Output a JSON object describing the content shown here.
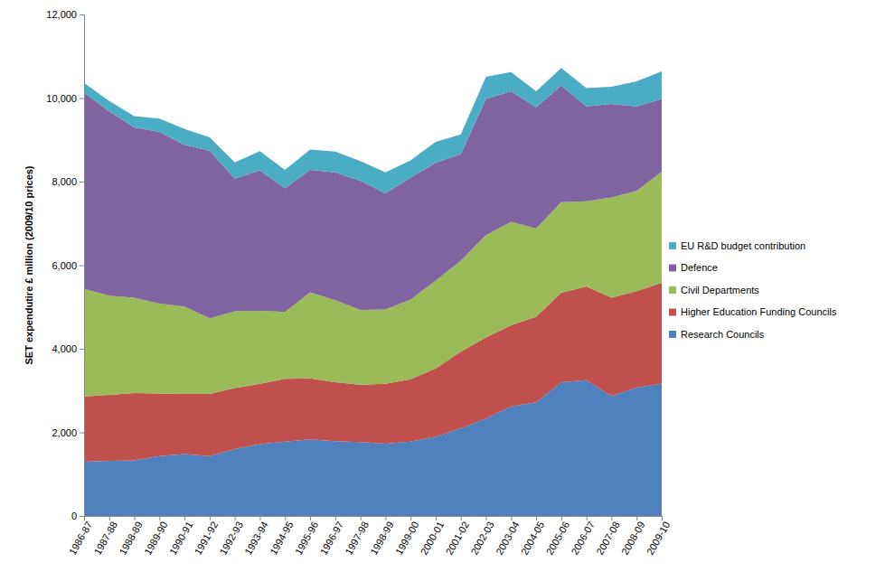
{
  "chart_data": {
    "type": "area",
    "stacked": true,
    "grid": false,
    "legend": "right",
    "y_label": "SET expendutire £ million (2009/10 prices)",
    "categories": [
      "1986-87",
      "1987-88",
      "1988-89",
      "1989-90",
      "1990-91",
      "1991-92",
      "1992-93",
      "1993-94",
      "1994-95",
      "1995-96",
      "1996-97",
      "1997-98",
      "1998-99",
      "1999-00",
      "2000-01",
      "2001-02",
      "2002-03",
      "2003-04",
      "2004-05",
      "2005-06",
      "2006-07",
      "2007-08",
      "2008-09",
      "2009-10"
    ],
    "ylim": [
      0,
      12000
    ],
    "yticks": [
      0,
      {
        "value": 2000,
        "label": "2,000"
      },
      {
        "value": 4000,
        "label": "4,000"
      },
      {
        "value": 6000,
        "label": "6,000"
      },
      {
        "value": 8000,
        "label": "8,000"
      },
      {
        "value": 10000,
        "label": "10,000"
      },
      {
        "value": 12000,
        "label": "12,000"
      }
    ],
    "series": [
      {
        "name": "Research Councils",
        "color": "#4f81bd",
        "values": [
          1300,
          1320,
          1330,
          1430,
          1480,
          1430,
          1600,
          1720,
          1780,
          1830,
          1790,
          1770,
          1730,
          1780,
          1900,
          2100,
          2330,
          2620,
          2720,
          3200,
          3250,
          2870,
          3070,
          3170
        ]
      },
      {
        "name": "Higher Education Funding Councils",
        "color": "#c0504d",
        "values": [
          1560,
          1580,
          1610,
          1500,
          1440,
          1490,
          1460,
          1440,
          1500,
          1460,
          1410,
          1370,
          1430,
          1490,
          1630,
          1830,
          1940,
          1940,
          2050,
          2140,
          2240,
          2350,
          2310,
          2410
        ]
      },
      {
        "name": "Civil Departments",
        "color": "#9bbb59",
        "values": [
          2570,
          2370,
          2280,
          2150,
          2090,
          1810,
          1840,
          1750,
          1600,
          2060,
          1960,
          1790,
          1780,
          1910,
          2100,
          2180,
          2450,
          2480,
          2110,
          2170,
          2040,
          2400,
          2400,
          2660
        ]
      },
      {
        "name": "Defence",
        "color": "#8064a2",
        "values": [
          4700,
          4410,
          4080,
          4110,
          3870,
          4010,
          3170,
          3360,
          2960,
          2930,
          3060,
          3090,
          2780,
          2920,
          2820,
          2550,
          3260,
          3120,
          2900,
          2790,
          2270,
          2240,
          2020,
          1740
        ]
      },
      {
        "name": "EU R&D budget contribution",
        "color": "#4bacc6",
        "values": [
          230,
          250,
          270,
          320,
          380,
          320,
          390,
          460,
          440,
          490,
          500,
          470,
          500,
          410,
          500,
          470,
          530,
          460,
          380,
          420,
          440,
          410,
          600,
          660
        ]
      }
    ]
  }
}
